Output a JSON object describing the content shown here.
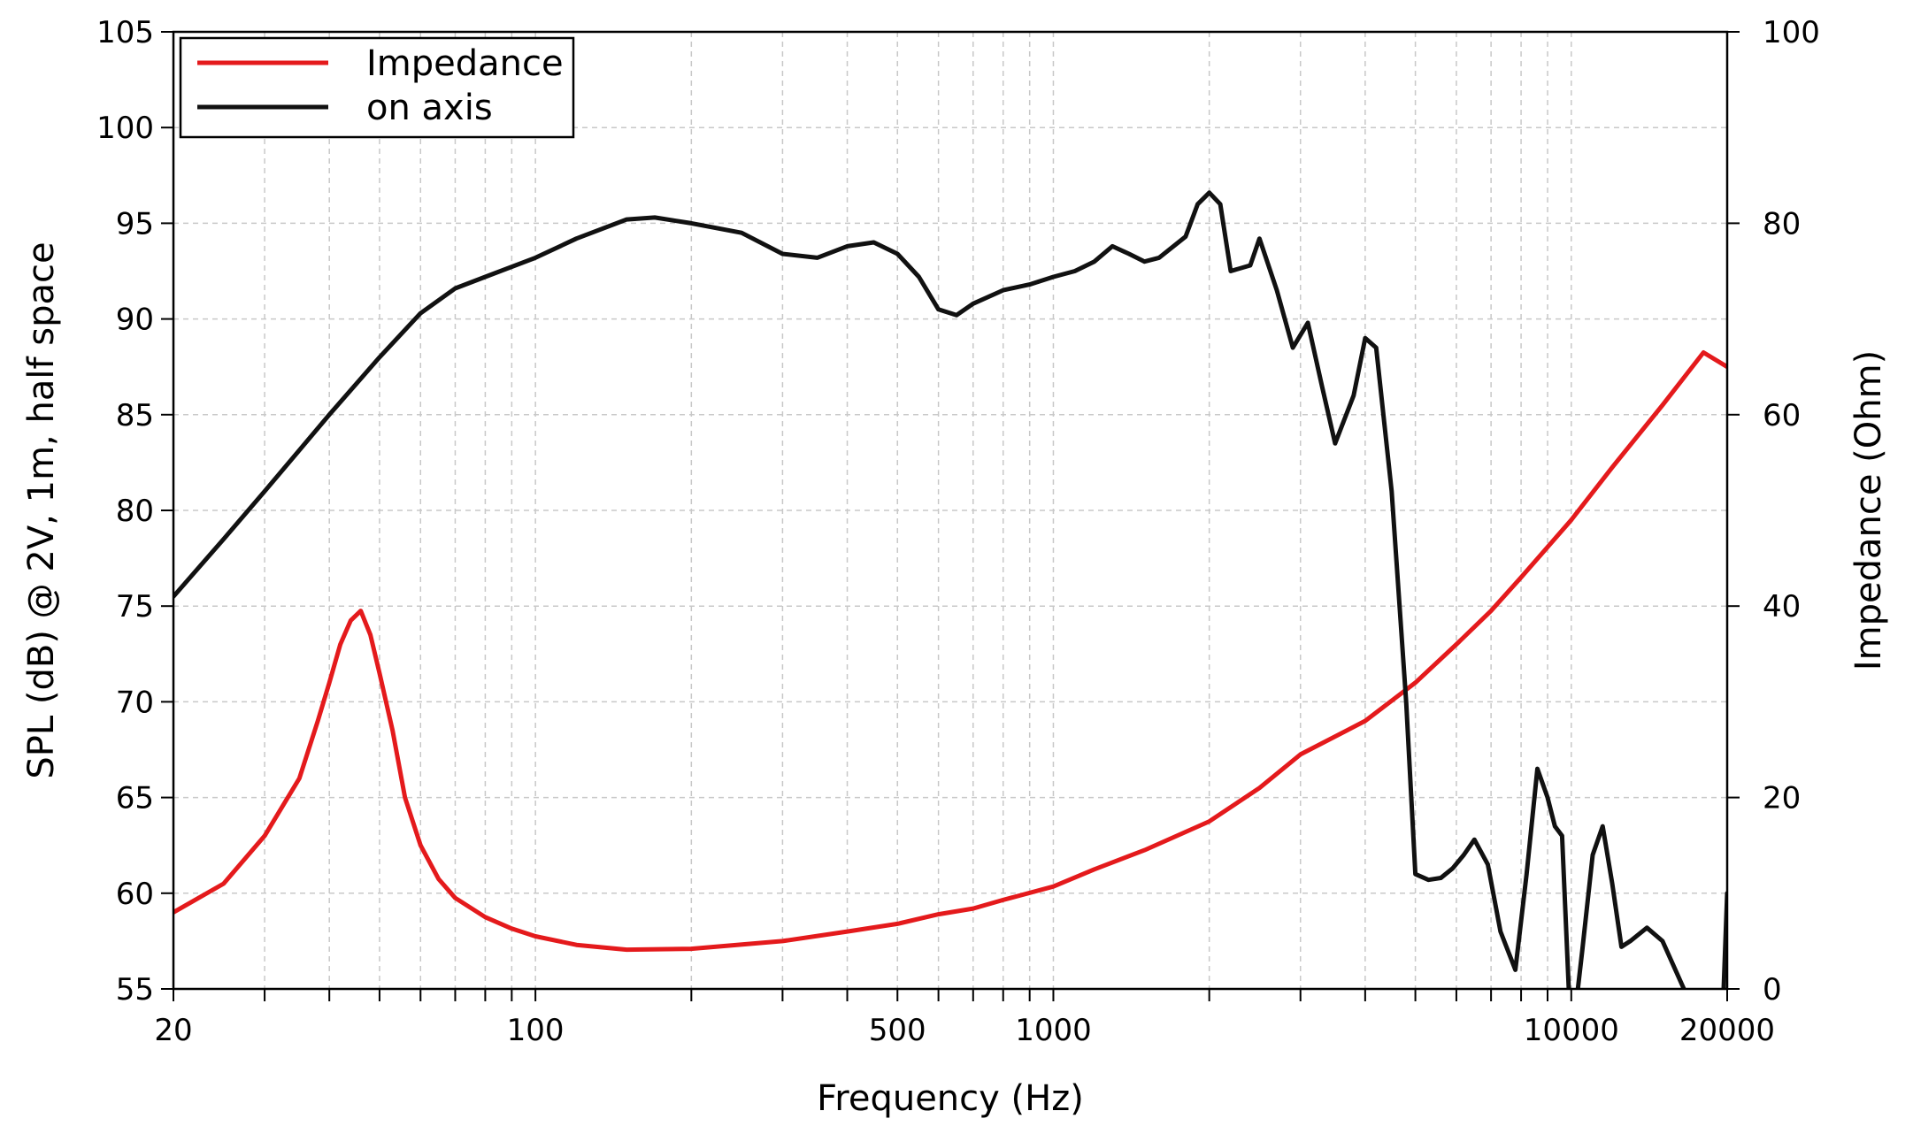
{
  "chart_data": {
    "type": "line",
    "xlabel": "Frequency (Hz)",
    "ylabel": "SPL (dB) @ 2V, 1m, half space",
    "y2label": "Impedance (Ohm)",
    "x_scale": "log",
    "xlim": [
      20,
      20000
    ],
    "ylim": [
      55,
      105
    ],
    "y2lim": [
      0,
      100
    ],
    "x_ticks": [
      20,
      100,
      500,
      1000,
      10000,
      20000
    ],
    "x_tick_labels": [
      "20",
      "100",
      "500",
      "1000",
      "10000",
      "20000"
    ],
    "x_minor_ticks": [
      30,
      40,
      50,
      60,
      70,
      80,
      90,
      200,
      300,
      400,
      600,
      700,
      800,
      900,
      2000,
      3000,
      4000,
      5000,
      6000,
      7000,
      8000,
      9000
    ],
    "y_ticks": [
      55,
      60,
      65,
      70,
      75,
      80,
      85,
      90,
      95,
      100,
      105
    ],
    "y_tick_labels": [
      "55",
      "60",
      "65",
      "70",
      "75",
      "80",
      "85",
      "90",
      "95",
      "100",
      "105"
    ],
    "y2_ticks": [
      0,
      20,
      40,
      60,
      80,
      100
    ],
    "y2_tick_labels": [
      "0",
      "20",
      "40",
      "60",
      "80",
      "100"
    ],
    "grid": true,
    "legend_position": "top-left",
    "series": [
      {
        "name": "Impedance",
        "axis": "right",
        "color": "#e41a1c",
        "x": [
          20,
          25,
          30,
          35,
          38,
          40,
          42,
          44,
          46,
          48,
          50,
          53,
          56,
          60,
          65,
          70,
          80,
          90,
          100,
          120,
          150,
          200,
          300,
          400,
          500,
          600,
          700,
          800,
          1000,
          1200,
          1500,
          2000,
          2500,
          3000,
          4000,
          5000,
          6000,
          7000,
          8000,
          10000,
          12000,
          15000,
          18000,
          20000
        ],
        "values": [
          8,
          11,
          16,
          22,
          28,
          32,
          36,
          38.5,
          39.5,
          37,
          33,
          27,
          20,
          15,
          11.5,
          9.5,
          7.5,
          6.3,
          5.5,
          4.6,
          4.1,
          4.2,
          5,
          6,
          6.8,
          7.8,
          8.4,
          9.3,
          10.7,
          12.5,
          14.5,
          17.5,
          21,
          24.5,
          28,
          32,
          36,
          39.5,
          43,
          49,
          54.5,
          61,
          66.5,
          65
        ]
      },
      {
        "name": "on axis",
        "axis": "left",
        "color": "#111111",
        "x": [
          20,
          25,
          30,
          40,
          50,
          60,
          70,
          80,
          100,
          120,
          150,
          170,
          200,
          250,
          300,
          350,
          400,
          450,
          500,
          550,
          600,
          650,
          700,
          800,
          900,
          1000,
          1100,
          1200,
          1300,
          1400,
          1500,
          1600,
          1800,
          1900,
          2000,
          2100,
          2200,
          2400,
          2500,
          2700,
          2900,
          3100,
          3300,
          3500,
          3800,
          4000,
          4200,
          4500,
          4800,
          5000,
          5300,
          5600,
          5900,
          6200,
          6500,
          6900,
          7300,
          7800,
          8200,
          8600,
          9000,
          9300,
          9600,
          10000,
          10500,
          11000,
          11500,
          12000,
          12500,
          13000,
          14000,
          15000,
          16500,
          18000,
          19500,
          20000
        ],
        "values": [
          75.5,
          78.5,
          81,
          85,
          88,
          90.3,
          91.6,
          92.2,
          93.2,
          94.2,
          95.2,
          95.3,
          95,
          94.5,
          93.4,
          93.2,
          93.8,
          94,
          93.4,
          92.2,
          90.5,
          90.2,
          90.8,
          91.5,
          91.8,
          92.2,
          92.5,
          93,
          93.8,
          93.4,
          93,
          93.2,
          94.3,
          96,
          96.6,
          96,
          92.5,
          92.8,
          94.2,
          91.5,
          88.5,
          89.8,
          86.5,
          83.5,
          86,
          89,
          88.5,
          81,
          70,
          61,
          60.7,
          60.8,
          61.3,
          62,
          62.8,
          61.5,
          58,
          56,
          61,
          66.5,
          65,
          63.5,
          63,
          52,
          57,
          62,
          63.5,
          60.5,
          57.2,
          57.5,
          58.2,
          57.5,
          55,
          49,
          52,
          60
        ]
      }
    ]
  }
}
